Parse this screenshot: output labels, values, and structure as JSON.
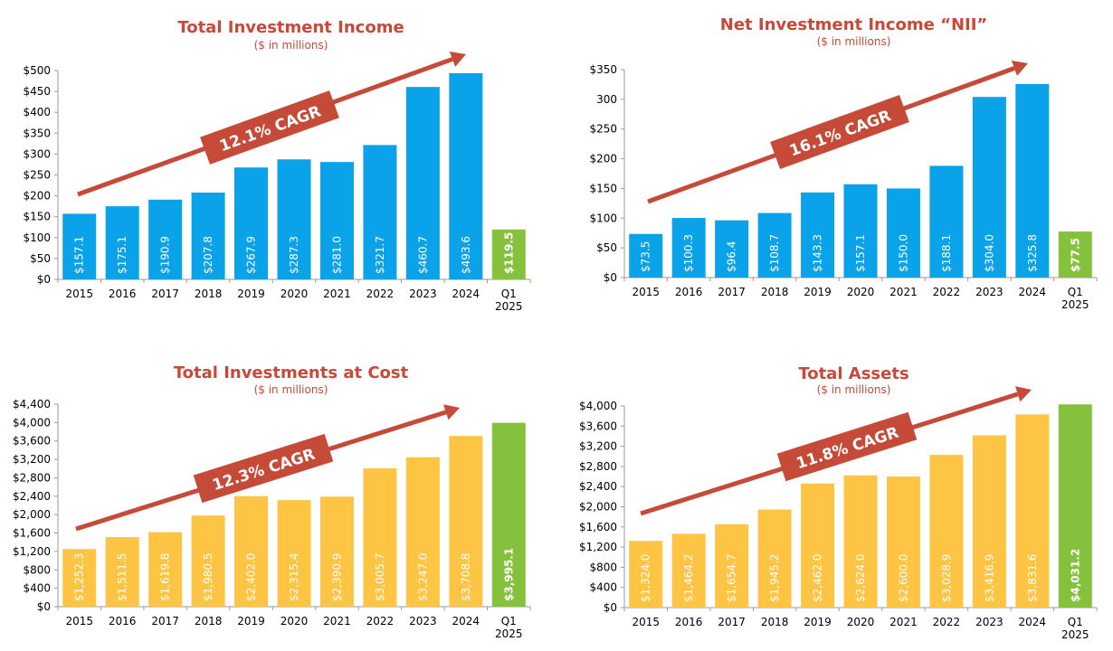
{
  "colors": {
    "title": "#c9483a",
    "arrow": "#c64a38",
    "blue": "#0aa2e9",
    "gold": "#fdc543",
    "green": "#86c13d",
    "axis": "#9a9a9a",
    "tick_text": "#000000"
  },
  "chart_data": [
    {
      "type": "bar",
      "title": "Total Investment Income",
      "subtitle": "($ in millions)",
      "cagr_label": "12.1% CAGR",
      "categories": [
        "2015",
        "2016",
        "2017",
        "2018",
        "2019",
        "2020",
        "2021",
        "2022",
        "2023",
        "2024",
        "Q1 2025"
      ],
      "values": [
        157.1,
        175.1,
        190.9,
        207.8,
        267.9,
        287.3,
        281.0,
        321.7,
        460.7,
        493.6,
        119.5
      ],
      "value_labels": [
        "$157.1",
        "$175.1",
        "$190.9",
        "$207.8",
        "$267.9",
        "$287.3",
        "$281.0",
        "$321.7",
        "$460.7",
        "$493.6",
        "$119.5"
      ],
      "ylim": [
        0,
        500
      ],
      "ytick_values": [
        0,
        50,
        100,
        150,
        200,
        250,
        300,
        350,
        400,
        450,
        500
      ],
      "ytick_labels": [
        "$0",
        "$50",
        "$100",
        "$150",
        "$200",
        "$250",
        "$300",
        "$350",
        "$400",
        "$450",
        "$500"
      ],
      "bar_color": "#0aa2e9",
      "last_bar_color": "#86c13d"
    },
    {
      "type": "bar",
      "title": "Net Investment Income “NII”",
      "subtitle": "($ in millions)",
      "cagr_label": "16.1% CAGR",
      "categories": [
        "2015",
        "2016",
        "2017",
        "2018",
        "2019",
        "2020",
        "2021",
        "2022",
        "2023",
        "2024",
        "Q1 2025"
      ],
      "values": [
        73.5,
        100.3,
        96.4,
        108.7,
        143.3,
        157.1,
        150.0,
        188.1,
        304.0,
        325.8,
        77.5
      ],
      "value_labels": [
        "$73.5",
        "$100.3",
        "$96.4",
        "$108.7",
        "$143.3",
        "$157.1",
        "$150.0",
        "$188.1",
        "$304.0",
        "$325.8",
        "$77.5"
      ],
      "ylim": [
        0,
        350
      ],
      "ytick_values": [
        0,
        50,
        100,
        150,
        200,
        250,
        300,
        350
      ],
      "ytick_labels": [
        "$0",
        "$50",
        "$100",
        "$150",
        "$200",
        "$250",
        "300",
        "$350"
      ],
      "bar_color": "#0aa2e9",
      "last_bar_color": "#86c13d"
    },
    {
      "type": "bar",
      "title": "Total Investments at Cost",
      "subtitle": "($ in millions)",
      "cagr_label": "12.3% CAGR",
      "categories": [
        "2015",
        "2016",
        "2017",
        "2018",
        "2019",
        "2020",
        "2021",
        "2022",
        "2023",
        "2024",
        "Q1 2025"
      ],
      "values": [
        1252.3,
        1511.5,
        1619.8,
        1980.5,
        2402.0,
        2315.4,
        2390.9,
        3005.7,
        3247.0,
        3708.8,
        3995.1
      ],
      "value_labels": [
        "$1,252.3",
        "$1,511.5",
        "$1,619.8",
        "$1,980.5",
        "$2,402.0",
        "$2,315.4",
        "$2,390.9",
        "$3,005.7",
        "$3,247.0",
        "$3,708.8",
        "$3,995.1"
      ],
      "ylim": [
        0,
        4400
      ],
      "ytick_values": [
        0,
        400,
        800,
        1200,
        1600,
        2000,
        2400,
        2800,
        3200,
        3600,
        4000,
        4400
      ],
      "ytick_labels": [
        "$0",
        "$400",
        "$800",
        "$1,200",
        "$1,600",
        "$2,000",
        "$2,400",
        "$2,800",
        "$3,200",
        "$3,600",
        "$4,000",
        "$4,400"
      ],
      "bar_color": "#fdc543",
      "last_bar_color": "#86c13d"
    },
    {
      "type": "bar",
      "title": "Total Assets",
      "subtitle": "($ in millions)",
      "cagr_label": "11.8% CAGR",
      "categories": [
        "2015",
        "2016",
        "2017",
        "2018",
        "2019",
        "2020",
        "2021",
        "2022",
        "2023",
        "2024",
        "Q1 2025"
      ],
      "values": [
        1324.0,
        1464.2,
        1654.7,
        1945.2,
        2462.0,
        2624.0,
        2600.0,
        3028.9,
        3416.9,
        3831.6,
        4031.2
      ],
      "value_labels": [
        "$1,324.0",
        "$1,464.2",
        "$1,654.7",
        "$1,945.2",
        "$2,462.0",
        "$2,624.0",
        "$2,600.0",
        "$3,028.9",
        "$3,416.9",
        "$3,831.6",
        "$4,031.2"
      ],
      "ylim": [
        0,
        4000
      ],
      "ytick_values": [
        0,
        400,
        800,
        1200,
        1600,
        2000,
        2400,
        2800,
        3200,
        3600,
        4000
      ],
      "ytick_labels": [
        "$0",
        "$400",
        "$800",
        "$1,200",
        "$1,600",
        "$2,000",
        "$2,400",
        "$2,800",
        "$3,200",
        "$3,600",
        "$4,000"
      ],
      "bar_color": "#fdc543",
      "last_bar_color": "#86c13d"
    }
  ]
}
